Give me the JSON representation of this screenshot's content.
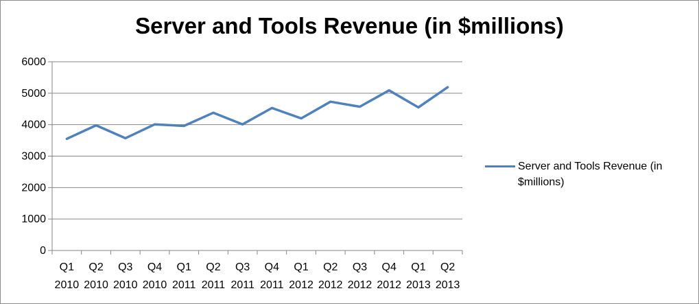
{
  "chart_data": {
    "type": "line",
    "title": "Server and Tools Revenue (in $millions)",
    "xlabel": "",
    "ylabel": "",
    "ylim": [
      0,
      6000
    ],
    "yticks": [
      0,
      1000,
      2000,
      3000,
      4000,
      5000,
      6000
    ],
    "categories": [
      [
        "Q1",
        "2010"
      ],
      [
        "Q2",
        "2010"
      ],
      [
        "Q3",
        "2010"
      ],
      [
        "Q4",
        "2010"
      ],
      [
        "Q1",
        "2011"
      ],
      [
        "Q2",
        "2011"
      ],
      [
        "Q3",
        "2011"
      ],
      [
        "Q4",
        "2011"
      ],
      [
        "Q1",
        "2012"
      ],
      [
        "Q2",
        "2012"
      ],
      [
        "Q3",
        "2012"
      ],
      [
        "Q4",
        "2012"
      ],
      [
        "Q1",
        "2013"
      ],
      [
        "Q2",
        "2013"
      ]
    ],
    "series": [
      {
        "name": "Server and Tools Revenue (in $millions)",
        "color": "#4f81bd",
        "values": [
          3550,
          3980,
          3570,
          4010,
          3960,
          4380,
          4010,
          4530,
          4200,
          4730,
          4570,
          5090,
          4550,
          5190
        ]
      }
    ],
    "grid": true,
    "legend": "right"
  }
}
